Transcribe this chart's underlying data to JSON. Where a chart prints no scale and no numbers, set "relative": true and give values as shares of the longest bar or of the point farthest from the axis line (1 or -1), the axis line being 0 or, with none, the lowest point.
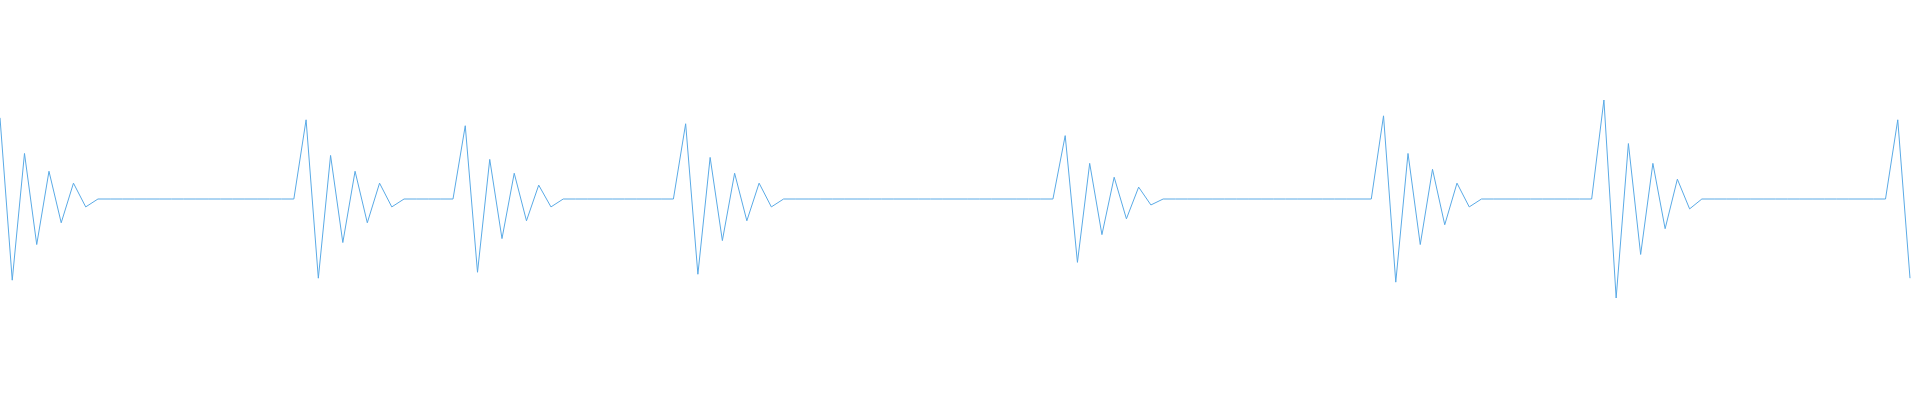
{
  "chart_data": {
    "type": "line",
    "relative": true,
    "color": "#5aaae6",
    "categories": [
      null,
      null,
      null,
      null,
      null,
      null,
      null,
      null,
      null,
      null,
      null,
      null,
      null,
      null,
      null,
      null,
      null,
      null,
      null,
      null,
      null,
      null,
      null,
      null,
      null,
      null,
      null,
      null,
      null,
      null,
      null,
      null,
      null,
      null,
      null,
      null,
      null,
      null,
      null,
      null,
      null,
      null,
      null,
      null,
      null,
      null,
      null,
      null,
      null,
      null,
      null,
      null,
      null,
      null,
      null,
      null,
      null,
      null,
      null,
      null,
      null,
      null,
      null,
      null,
      null,
      null,
      null,
      null,
      null,
      null,
      null,
      null,
      null,
      null,
      null,
      null,
      null,
      null,
      null,
      null,
      null,
      null,
      null,
      null,
      null,
      null,
      null,
      null,
      null,
      null,
      null,
      null,
      null,
      null,
      null,
      null,
      null,
      null,
      null,
      null,
      null,
      null,
      null,
      null,
      null,
      null,
      null,
      null,
      null,
      null,
      null,
      null,
      null,
      null,
      null,
      null,
      null,
      null,
      null,
      null,
      null,
      null,
      null,
      null,
      null,
      null,
      null,
      null,
      null,
      null,
      null,
      null,
      null,
      null,
      null,
      null,
      null,
      null,
      null,
      null,
      null,
      null,
      null,
      null,
      null,
      null,
      null,
      null,
      null,
      null,
      null,
      null,
      null,
      null,
      null,
      null,
      null
    ],
    "values": [
      0.91,
      0.09,
      0.73,
      0.27,
      0.64,
      0.38,
      0.58,
      0.46,
      0.5,
      0.5,
      0.5,
      0.5,
      0.5,
      0.5,
      0.5,
      0.5,
      0.5,
      0.5,
      0.5,
      0.5,
      0.5,
      0.5,
      0.5,
      0.5,
      0.5,
      0.9,
      0.1,
      0.72,
      0.28,
      0.64,
      0.38,
      0.58,
      0.46,
      0.5,
      0.5,
      0.5,
      0.5,
      0.5,
      0.87,
      0.13,
      0.7,
      0.3,
      0.63,
      0.39,
      0.57,
      0.46,
      0.5,
      0.5,
      0.5,
      0.5,
      0.5,
      0.5,
      0.5,
      0.5,
      0.5,
      0.5,
      0.88,
      0.12,
      0.71,
      0.29,
      0.63,
      0.39,
      0.58,
      0.46,
      0.5,
      0.5,
      0.5,
      0.5,
      0.5,
      0.5,
      0.5,
      0.5,
      0.5,
      0.5,
      0.5,
      0.5,
      0.5,
      0.5,
      0.5,
      0.5,
      0.5,
      0.5,
      0.5,
      0.5,
      0.5,
      0.5,
      0.5,
      0.82,
      0.18,
      0.68,
      0.32,
      0.61,
      0.4,
      0.56,
      0.47,
      0.5,
      0.5,
      0.5,
      0.5,
      0.5,
      0.5,
      0.5,
      0.5,
      0.5,
      0.5,
      0.5,
      0.5,
      0.5,
      0.5,
      0.5,
      0.5,
      0.5,
      0.5,
      0.92,
      0.08,
      0.73,
      0.27,
      0.65,
      0.37,
      0.58,
      0.46,
      0.5,
      0.5,
      0.5,
      0.5,
      0.5,
      0.5,
      0.5,
      0.5,
      0.5,
      0.5,
      1,
      0,
      0.78,
      0.22,
      0.68,
      0.35,
      0.6,
      0.45,
      0.5,
      0.5,
      0.5,
      0.5,
      0.5,
      0.5,
      0.5,
      0.5,
      0.5,
      0.5,
      0.5,
      0.5,
      0.5,
      0.5,
      0.5,
      0.5,
      0.9,
      0.1
    ]
  }
}
